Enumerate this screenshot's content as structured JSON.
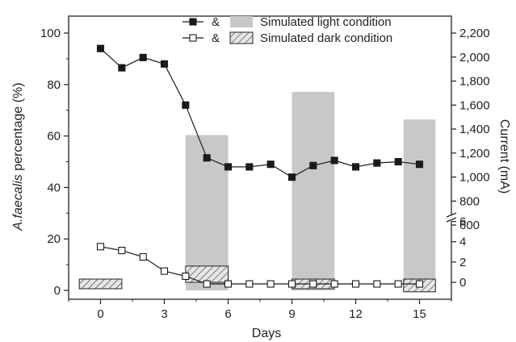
{
  "chart_data": {
    "type": "bar",
    "xlabel": "Days",
    "ylabel_prefix": "A.faecalis",
    "ylabel_suffix": " percentage (%)",
    "y2label": "Current (mA)",
    "xlim": [
      -1.5,
      16.5
    ],
    "ylim": [
      -2,
      100
    ],
    "x_ticks": [
      "0",
      "3",
      "6",
      "9",
      "12",
      "15"
    ],
    "y_ticks": [
      "0",
      "20",
      "40",
      "60",
      "80",
      "100"
    ],
    "y2_upper_ticks": [
      "600",
      "800",
      "1,000",
      "1,200",
      "1,400",
      "1,600",
      "1,800",
      "2,000",
      "2,200"
    ],
    "y2_lower_ticks": [
      "0",
      "2",
      "4",
      "6"
    ],
    "y2_upper_range": [
      600,
      2200
    ],
    "y2_lower_range": [
      0,
      7
    ],
    "grid": false,
    "legend": {
      "position": "top-right",
      "separator": "&",
      "items": [
        {
          "series": "filled",
          "bar": "light",
          "label": "Simulated light condition"
        },
        {
          "series": "open",
          "bar": "dark",
          "label": "Simulated dark condition"
        }
      ]
    },
    "series": [
      {
        "marker": "filled-square",
        "x": [
          0,
          1,
          2,
          3,
          4,
          5,
          6,
          7,
          8,
          9,
          10,
          11,
          12,
          13,
          14,
          15
        ],
        "values": [
          94,
          86.5,
          90.5,
          88,
          72,
          51.5,
          48,
          48,
          49,
          44,
          48.5,
          50.5,
          48,
          49.5,
          50,
          49
        ]
      },
      {
        "marker": "open-square",
        "x": [
          0,
          1,
          2,
          3,
          4,
          5,
          6,
          7,
          8,
          9,
          10,
          11,
          12,
          13,
          14,
          15
        ],
        "values": [
          17,
          15.5,
          13,
          7.5,
          5.5,
          2.5,
          2.5,
          2.5,
          2.5,
          2.5,
          2.5,
          2.5,
          2.5,
          2.5,
          2.5,
          2.5
        ]
      }
    ],
    "bars": [
      {
        "condition": "dark",
        "x": 0,
        "width": 2,
        "current_mA": 0
      },
      {
        "condition": "light",
        "x": 5,
        "width": 2,
        "current_mA": 1350
      },
      {
        "condition": "dark",
        "x": 5,
        "width": 2,
        "current_mA": 1.6
      },
      {
        "condition": "light",
        "x": 10,
        "width": 2,
        "current_mA": 1710
      },
      {
        "condition": "dark",
        "x": 10,
        "width": 2,
        "current_mA": 0.1
      },
      {
        "condition": "light",
        "x": 15,
        "width": 1.5,
        "current_mA": 1480
      },
      {
        "condition": "dark",
        "x": 15,
        "width": 1.5,
        "current_mA": -0.3
      }
    ],
    "colors": {
      "light_bar": "#c8c8c8",
      "line": "#1a1a1a",
      "open_marker_fill": "#ffffff"
    }
  }
}
